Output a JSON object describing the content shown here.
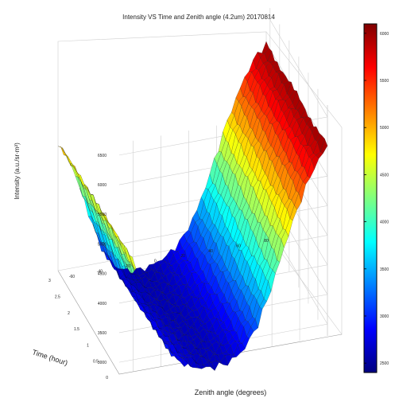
{
  "chart_data": {
    "type": "surface",
    "title": "Intensity VS Time and Zenith angle (4.2um) 20170814",
    "xlabel": "Zenith angle (degrees)",
    "ylabel": "Time (hour)",
    "zlabel": "Intensity (a.u./sr·m²)",
    "zlabel_sup": "2",
    "x_ticks": [
      "-60",
      "-40",
      "-20",
      "0",
      "20",
      "40",
      "60",
      "80"
    ],
    "y_ticks": [
      "0",
      "0.5",
      "1",
      "1.5",
      "2",
      "2.5",
      "3"
    ],
    "z_ticks": [
      "3000",
      "3500",
      "4000",
      "4500",
      "5000",
      "5500",
      "6000",
      "6500"
    ],
    "colorbar_ticks": [
      "2500",
      "3000",
      "3500",
      "4000",
      "4500",
      "5000",
      "5500",
      "6000"
    ],
    "colorbar_range": [
      2400,
      6100
    ],
    "colormap": "jet",
    "zlim": [
      2800,
      6700
    ],
    "grid": true,
    "surface_profile": {
      "x": [
        -70,
        -60,
        -50,
        -40,
        -30,
        -20,
        -10,
        0,
        10,
        20,
        30,
        40,
        50,
        60,
        70,
        80
      ],
      "z": [
        5000,
        4600,
        3900,
        3200,
        2800,
        2650,
        2600,
        2620,
        2700,
        2900,
        3300,
        3900,
        4600,
        5200,
        5700,
        6000
      ]
    }
  }
}
